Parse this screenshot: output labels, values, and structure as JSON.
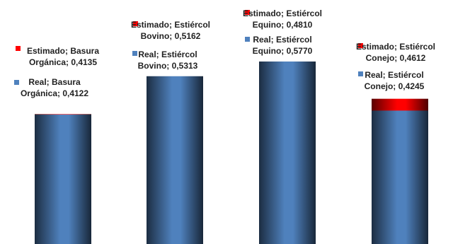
{
  "chart_data": {
    "type": "bar",
    "series": [
      {
        "color": "#ff0000",
        "values": [
          0.4135,
          0.5162,
          0.481,
          0.4612
        ],
        "value_labels": [
          "Estimado; Basura Orgánica; 0,4135",
          "Estimado; Estiércol Bovino; 0,5162",
          "Estimado; Estiércol Equino; 0,4810",
          "Estimado; Estiércol Conejo; 0,4612"
        ]
      },
      {
        "color": "#4f81bd",
        "values": [
          0.4122,
          0.5313,
          0.577,
          0.4245
        ],
        "value_labels": [
          "Real; Basura Orgánica; 0,4122",
          "Real; Estiércol Bovino; 0,5313",
          "Real; Estiércol Equino; 0,5770",
          "Real; Estiércol Conejo; 0,4245"
        ]
      }
    ]
  }
}
